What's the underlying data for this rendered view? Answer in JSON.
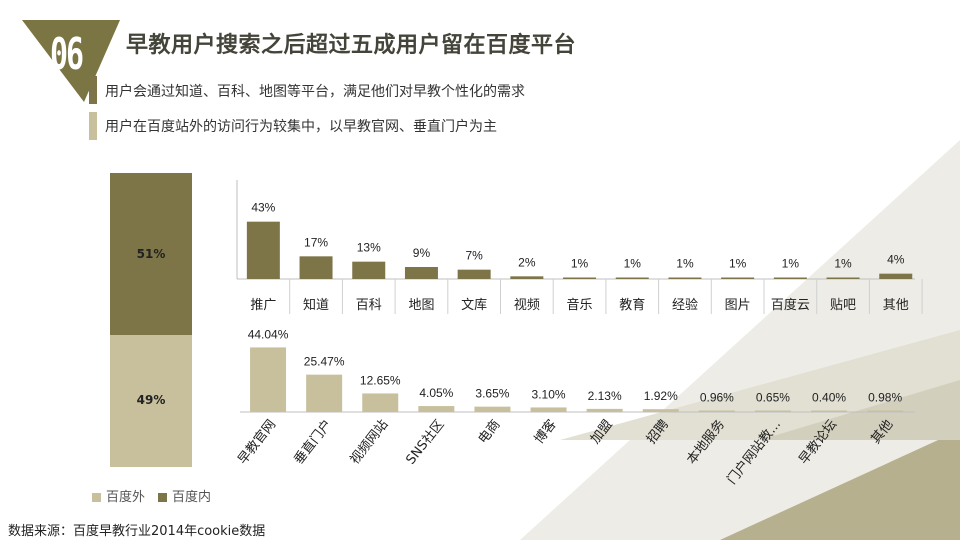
{
  "header": {
    "badge_number": "06",
    "title": "早教用户搜索之后超过五成用户留在百度平台",
    "bullets": [
      "用户会通过知道、百科、地图等平台，满足他们对早教个性化的需求",
      "用户在百度站外的访问行为较集中，以早教官网、垂直门户为主"
    ]
  },
  "colors": {
    "dark": "#7d7548",
    "light": "#c8c09d",
    "badge": "#7b7443",
    "text": "#333333"
  },
  "chart_data": [
    {
      "type": "bar",
      "stacked": true,
      "title": "",
      "categories": [
        "百度"
      ],
      "series": [
        {
          "name": "百度内",
          "value": 51,
          "label": "51%"
        },
        {
          "name": "百度外",
          "value": 49,
          "label": "49%"
        }
      ],
      "legend": [
        {
          "name": "百度外"
        },
        {
          "name": "百度内"
        }
      ]
    },
    {
      "type": "bar",
      "series_name": "百度内",
      "categories": [
        "推广",
        "知道",
        "百科",
        "地图",
        "文库",
        "视频",
        "音乐",
        "教育",
        "经验",
        "图片",
        "百度云",
        "贴吧",
        "其他"
      ],
      "values": [
        43,
        17,
        13,
        9,
        7,
        2,
        1,
        1,
        1,
        1,
        1,
        1,
        4
      ],
      "labels": [
        "43%",
        "17%",
        "13%",
        "9%",
        "7%",
        "2%",
        "1%",
        "1%",
        "1%",
        "1%",
        "1%",
        "1%",
        "4%"
      ],
      "ylim": [
        0,
        45
      ]
    },
    {
      "type": "bar",
      "series_name": "百度外",
      "categories": [
        "早教官网",
        "垂直门户",
        "视频网站",
        "SNS社区",
        "电商",
        "博客",
        "加盟",
        "招聘",
        "本地服务",
        "门户网站教...",
        "早教论坛",
        "其他"
      ],
      "values": [
        44.04,
        25.47,
        12.65,
        4.05,
        3.65,
        3.1,
        2.13,
        1.92,
        0.96,
        0.65,
        0.4,
        0.98
      ],
      "labels": [
        "44.04%",
        "25.47%",
        "12.65%",
        "4.05%",
        "3.65%",
        "3.10%",
        "2.13%",
        "1.92%",
        "0.96%",
        "0.65%",
        "0.40%",
        "0.98%"
      ],
      "ylim": [
        0,
        45
      ]
    }
  ],
  "legend": {
    "outside": "百度外",
    "inside": "百度内"
  },
  "source": "数据来源：百度早教行业2014年cookie数据"
}
